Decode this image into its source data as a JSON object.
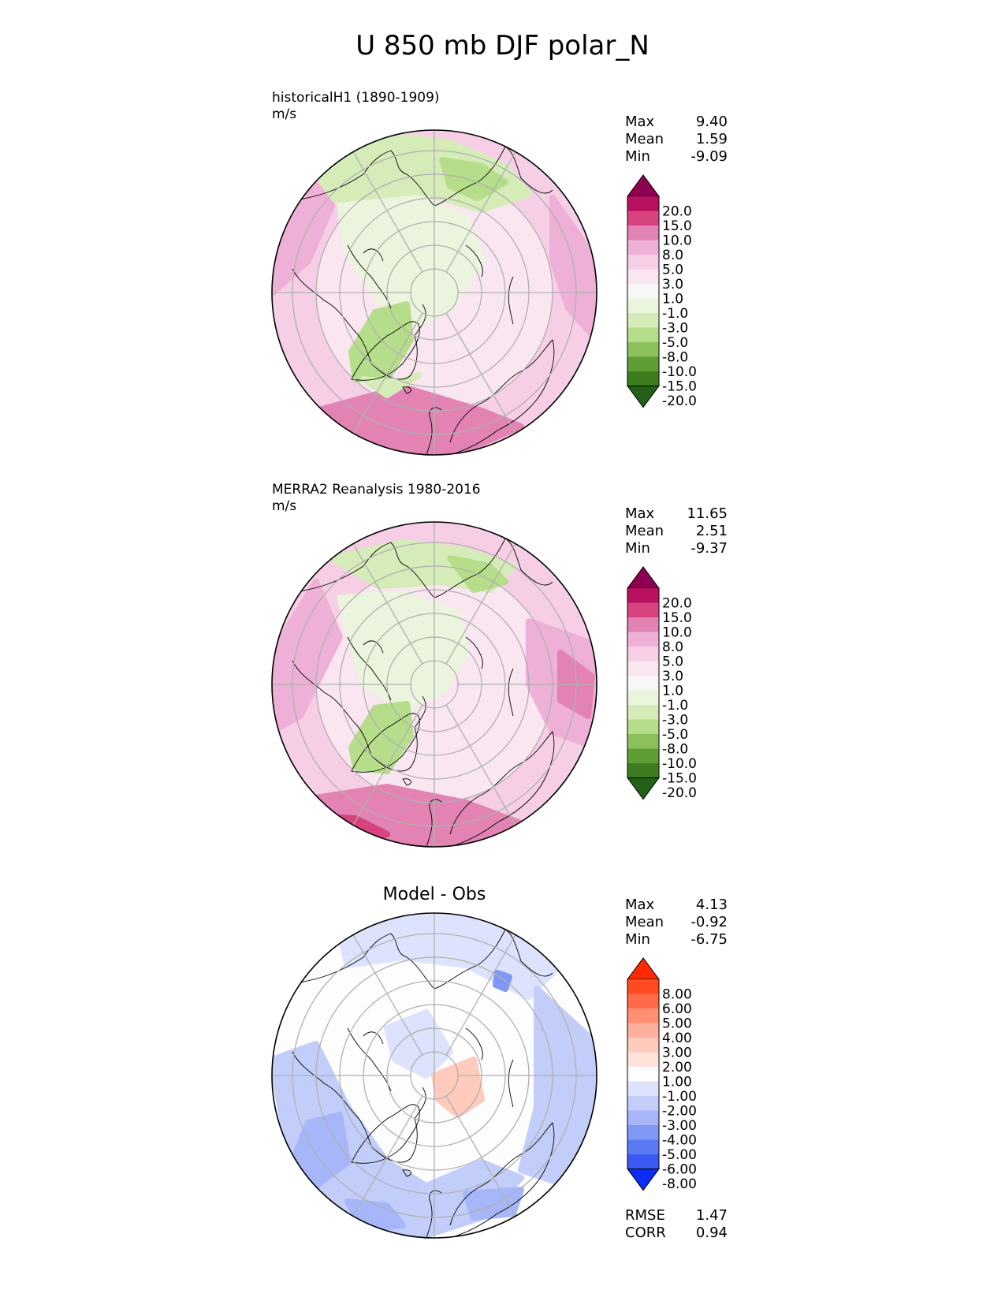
{
  "figure": {
    "title": "U 850 mb DJF polar_N"
  },
  "colors": {
    "land_outline": "#000000",
    "grid": "#b0b0b0"
  },
  "chart_data": [
    {
      "type": "heatmap",
      "projection": "north polar stereographic",
      "title": "historicalH1 (1890-1909)",
      "units": "m/s",
      "stats": {
        "Max": "9.40",
        "Mean": "1.59",
        "Min": "-9.09"
      },
      "colorbar": {
        "levels": [
          "20.0",
          "15.0",
          "10.0",
          "8.0",
          "5.0",
          "3.0",
          "1.0",
          "-1.0",
          "-3.0",
          "-5.0",
          "-8.0",
          "-10.0",
          "-15.0",
          "-20.0"
        ],
        "colors": [
          "#8e0152",
          "#b7115f",
          "#d6437f",
          "#e283b4",
          "#eeb0d6",
          "#f6cfe6",
          "#f9e6f0",
          "#f7f7f7",
          "#ebf5dd",
          "#d5ecb8",
          "#b6de8a",
          "#8cc05a",
          "#5f9e34",
          "#3d7d1f",
          "#246118"
        ]
      }
    },
    {
      "type": "heatmap",
      "projection": "north polar stereographic",
      "title": "MERRA2 Reanalysis 1980-2016",
      "units": "m/s",
      "stats": {
        "Max": "11.65",
        "Mean": "2.51",
        "Min": "-9.37"
      },
      "colorbar": {
        "levels": [
          "20.0",
          "15.0",
          "10.0",
          "8.0",
          "5.0",
          "3.0",
          "1.0",
          "-1.0",
          "-3.0",
          "-5.0",
          "-8.0",
          "-10.0",
          "-15.0",
          "-20.0"
        ],
        "colors": [
          "#8e0152",
          "#b7115f",
          "#d6437f",
          "#e283b4",
          "#eeb0d6",
          "#f6cfe6",
          "#f9e6f0",
          "#f7f7f7",
          "#ebf5dd",
          "#d5ecb8",
          "#b6de8a",
          "#8cc05a",
          "#5f9e34",
          "#3d7d1f",
          "#246118"
        ]
      }
    },
    {
      "type": "heatmap",
      "projection": "north polar stereographic",
      "title": "Model - Obs",
      "stats": {
        "Max": "4.13",
        "Mean": "-0.92",
        "Min": "-6.75"
      },
      "metrics": {
        "RMSE": "1.47",
        "CORR": "0.94"
      },
      "colorbar": {
        "levels": [
          "8.00",
          "6.00",
          "5.00",
          "4.00",
          "3.00",
          "2.00",
          "1.00",
          "-1.00",
          "-2.00",
          "-3.00",
          "-4.00",
          "-5.00",
          "-6.00",
          "-8.00"
        ],
        "colors": [
          "#ff2a00",
          "#ff4b22",
          "#ff6a48",
          "#ff8f73",
          "#ffb09c",
          "#ffcbbd",
          "#ffe3da",
          "#fdfdfd",
          "#dde3fc",
          "#c2cdfa",
          "#a6b6f8",
          "#8098f5",
          "#5b79f2",
          "#3a5af2",
          "#0d2cf6"
        ]
      }
    }
  ]
}
